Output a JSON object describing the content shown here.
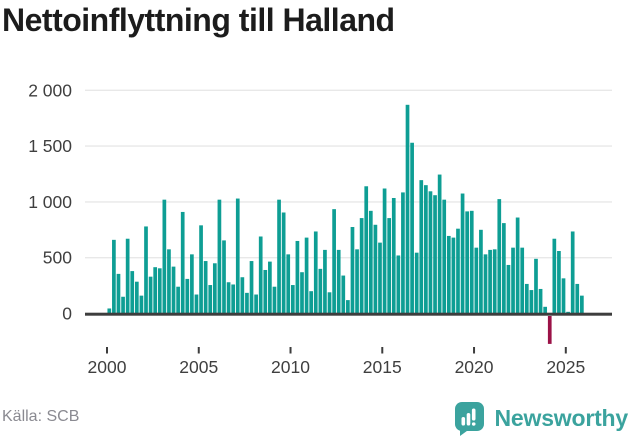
{
  "title": "Nettoinflyttning till Halland",
  "source": "Källa: SCB",
  "branding": {
    "name": "Newsworthy",
    "icon": "newsworthy-speech-bubble-bar-chart-icon"
  },
  "colors": {
    "bar": "#0e9e94",
    "negative_bar": "#9b1247",
    "gridline": "#e8e8e8",
    "axis": "#3d3d3d",
    "tick_label": "#3f3f3f",
    "title_text": "#1c1c1c",
    "source_text": "#8a8a91",
    "brand_teal": "#3ba39e",
    "background": "#ffffff"
  },
  "chart_data": {
    "type": "bar",
    "title": "Nettoinflyttning till Halland",
    "xlabel": "",
    "ylabel": "",
    "frequency": "quarterly",
    "x_start": "2000-Q1",
    "x_end": "2025-Q4",
    "ylim": [
      -320,
      2000
    ],
    "grid": "horizontal",
    "legend": "none",
    "y_ticks": [
      0,
      500,
      1000,
      1500,
      2000
    ],
    "y_tick_labels": [
      "0",
      "500",
      "1 000",
      "1 500",
      "2 000"
    ],
    "x_tick_years": [
      2000,
      2005,
      2010,
      2015,
      2020,
      2025
    ],
    "x_tick_labels": [
      "2000",
      "2005",
      "2010",
      "2015",
      "2020",
      "2025"
    ],
    "series_by_year": [
      {
        "year": 2000,
        "values": [
          45,
          660,
          355,
          150
        ]
      },
      {
        "year": 2001,
        "values": [
          670,
          380,
          285,
          160
        ]
      },
      {
        "year": 2002,
        "values": [
          780,
          330,
          415,
          405
        ]
      },
      {
        "year": 2003,
        "values": [
          1020,
          575,
          420,
          240
        ]
      },
      {
        "year": 2004,
        "values": [
          910,
          310,
          530,
          170
        ]
      },
      {
        "year": 2005,
        "values": [
          790,
          470,
          255,
          450
        ]
      },
      {
        "year": 2006,
        "values": [
          1020,
          655,
          280,
          260
        ]
      },
      {
        "year": 2007,
        "values": [
          1030,
          325,
          185,
          470
        ]
      },
      {
        "year": 2008,
        "values": [
          170,
          690,
          390,
          465
        ]
      },
      {
        "year": 2009,
        "values": [
          240,
          1020,
          905,
          530
        ]
      },
      {
        "year": 2010,
        "values": [
          255,
          650,
          370,
          680
        ]
      },
      {
        "year": 2011,
        "values": [
          200,
          735,
          400,
          570
        ]
      },
      {
        "year": 2012,
        "values": [
          190,
          935,
          570,
          340
        ]
      },
      {
        "year": 2013,
        "values": [
          120,
          775,
          575,
          855
        ]
      },
      {
        "year": 2014,
        "values": [
          1140,
          920,
          795,
          635
        ]
      },
      {
        "year": 2015,
        "values": [
          1120,
          855,
          1035,
          520
        ]
      },
      {
        "year": 2016,
        "values": [
          1085,
          1870,
          1530,
          545
        ]
      },
      {
        "year": 2017,
        "values": [
          1195,
          1150,
          1095,
          1060
        ]
      },
      {
        "year": 2018,
        "values": [
          1245,
          1020,
          695,
          680
        ]
      },
      {
        "year": 2019,
        "values": [
          760,
          1075,
          915,
          920
        ]
      },
      {
        "year": 2020,
        "values": [
          590,
          750,
          530,
          570
        ]
      },
      {
        "year": 2021,
        "values": [
          575,
          1025,
          810,
          435
        ]
      },
      {
        "year": 2022,
        "values": [
          590,
          860,
          590,
          265
        ]
      },
      {
        "year": 2023,
        "values": [
          210,
          490,
          220,
          60
        ]
      },
      {
        "year": 2024,
        "values": [
          -250,
          670,
          560,
          315
        ]
      },
      {
        "year": 2025,
        "values": [
          15,
          735,
          265,
          160
        ]
      }
    ]
  }
}
